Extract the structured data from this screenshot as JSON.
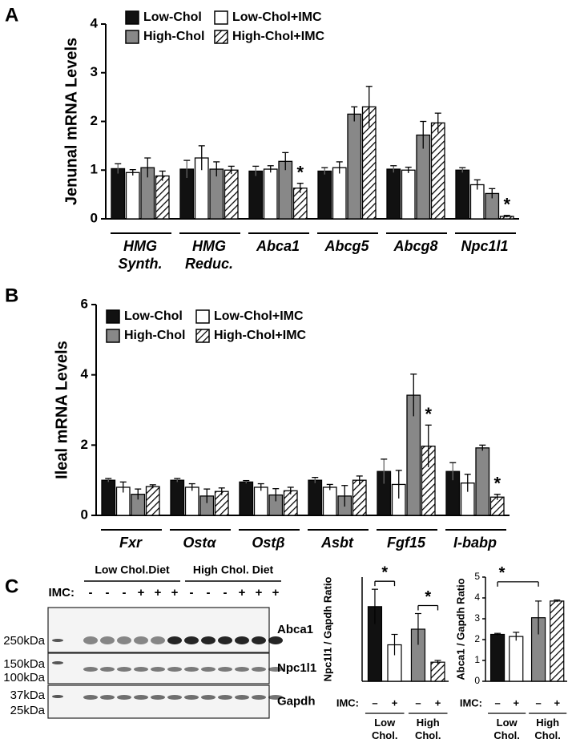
{
  "chart_data": [
    {
      "type": "bar",
      "panel": "A",
      "ylabel": "Jenunal mRNA Levels",
      "categories": [
        "HMG Synth.",
        "HMG Reduc.",
        "Abca1",
        "Abcg5",
        "Abcg8",
        "Npc1l1"
      ],
      "series": [
        {
          "name": "Low-Chol",
          "color": "#111111",
          "values": [
            1.03,
            1.02,
            0.98,
            0.98,
            1.02,
            1.0
          ],
          "errors": [
            0.1,
            0.18,
            0.1,
            0.07,
            0.07,
            0.05
          ]
        },
        {
          "name": "Low-Chol+IMC",
          "color": "#ffffff",
          "values": [
            0.95,
            1.25,
            1.02,
            1.05,
            1.0,
            0.7
          ],
          "errors": [
            0.06,
            0.25,
            0.07,
            0.12,
            0.06,
            0.1
          ]
        },
        {
          "name": "High-Chol",
          "color": "#888888",
          "values": [
            1.05,
            1.02,
            1.18,
            2.15,
            1.72,
            0.52
          ],
          "errors": [
            0.2,
            0.15,
            0.18,
            0.15,
            0.28,
            0.1
          ]
        },
        {
          "name": "High-Chol+IMC",
          "color": "#ffffff",
          "hatch": true,
          "values": [
            0.88,
            1.0,
            0.63,
            2.3,
            1.97,
            0.05
          ],
          "errors": [
            0.1,
            0.08,
            0.1,
            0.42,
            0.2,
            0.02
          ]
        }
      ],
      "ylim": [
        0,
        4
      ],
      "yticks": [
        0,
        1,
        2,
        3,
        4
      ],
      "annotations": [
        {
          "text": "*",
          "category": "Abca1",
          "series": "High-Chol+IMC"
        },
        {
          "text": "*",
          "category": "Npc1l1",
          "series": "High-Chol+IMC"
        }
      ]
    },
    {
      "type": "bar",
      "panel": "B",
      "ylabel": "Ileal mRNA Levels",
      "categories": [
        "Fxr",
        "Ostα",
        "Ostβ",
        "Asbt",
        "Fgf15",
        "I-babp"
      ],
      "series": [
        {
          "name": "Low-Chol",
          "color": "#111111",
          "values": [
            1.0,
            1.0,
            0.95,
            1.0,
            1.25,
            1.25
          ],
          "errors": [
            0.05,
            0.05,
            0.04,
            0.08,
            0.35,
            0.25
          ]
        },
        {
          "name": "Low-Chol+IMC",
          "color": "#ffffff",
          "values": [
            0.8,
            0.8,
            0.8,
            0.8,
            0.88,
            0.92
          ],
          "errors": [
            0.15,
            0.1,
            0.1,
            0.08,
            0.4,
            0.25
          ]
        },
        {
          "name": "High-Chol",
          "color": "#888888",
          "values": [
            0.6,
            0.55,
            0.58,
            0.55,
            3.42,
            1.92
          ],
          "errors": [
            0.15,
            0.2,
            0.18,
            0.3,
            0.6,
            0.08
          ]
        },
        {
          "name": "High-Chol+IMC",
          "color": "#ffffff",
          "hatch": true,
          "values": [
            0.82,
            0.68,
            0.7,
            1.0,
            1.97,
            0.52
          ],
          "errors": [
            0.05,
            0.1,
            0.1,
            0.12,
            0.6,
            0.08
          ]
        }
      ],
      "ylim": [
        0,
        6
      ],
      "yticks": [
        0,
        2,
        4,
        6
      ],
      "annotations": [
        {
          "text": "*",
          "category": "Fgf15",
          "series": "High-Chol+IMC"
        },
        {
          "text": "*",
          "category": "I-babp",
          "series": "High-Chol+IMC"
        }
      ]
    },
    {
      "type": "bar",
      "ylabel": "Npc1l1 / Gapdh Ratio",
      "x_label": "IMC:",
      "categories": [
        "–",
        "+",
        "–",
        "+"
      ],
      "groups": [
        "Low Chol.",
        "High Chol."
      ],
      "values": [
        0.43,
        0.21,
        0.3,
        0.11
      ],
      "errors": [
        0.1,
        0.06,
        0.09,
        0.01
      ],
      "colors": [
        "#111111",
        "#ffffff",
        "#888888",
        "#ffffff"
      ],
      "hatch": [
        false,
        false,
        false,
        true
      ],
      "ylim": [
        0,
        0.6
      ],
      "annotations": [
        {
          "text": "*",
          "pair": [
            0,
            1
          ]
        },
        {
          "text": "*",
          "pair": [
            2,
            3
          ]
        }
      ]
    },
    {
      "type": "bar",
      "ylabel": "Abca1 / Gapdh Ratio",
      "x_label": "IMC:",
      "categories": [
        "–",
        "+",
        "–",
        "+"
      ],
      "groups": [
        "Low Chol.",
        "High Chol."
      ],
      "values": [
        2.25,
        2.15,
        3.05,
        3.85
      ],
      "errors": [
        0.05,
        0.2,
        0.8,
        0.05
      ],
      "colors": [
        "#111111",
        "#ffffff",
        "#888888",
        "#ffffff"
      ],
      "hatch": [
        false,
        false,
        false,
        true
      ],
      "ylim": [
        0,
        5
      ],
      "yticks": [
        0,
        1,
        2,
        3,
        4,
        5
      ],
      "annotations": [
        {
          "text": "*",
          "pair": [
            0,
            2
          ]
        }
      ]
    }
  ],
  "blot": {
    "panel": "C",
    "group_labels": [
      "Low Chol.Diet",
      "High Chol. Diet"
    ],
    "imc_label": "IMC:",
    "imc": [
      "-",
      "-",
      "-",
      "+",
      "+",
      "+",
      "-",
      "-",
      "-",
      "+",
      "+",
      "+"
    ],
    "bands": [
      "Abca1",
      "Npc1l1",
      "Gapdh"
    ],
    "markers": [
      "250kDa",
      "150kDa",
      "100kDa",
      "37kDa",
      "25kDa"
    ]
  }
}
